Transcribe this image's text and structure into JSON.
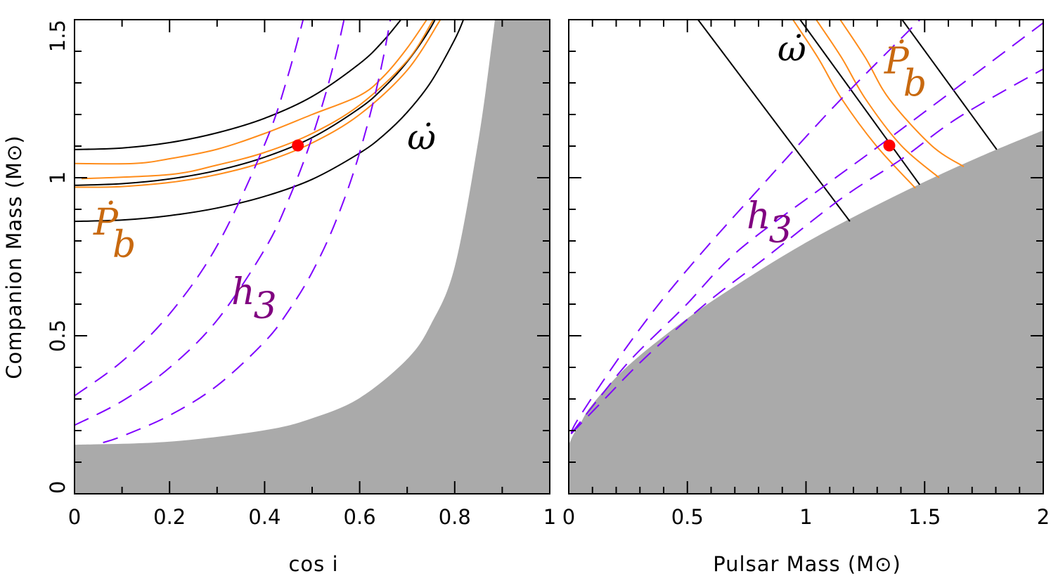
{
  "chart_data": [
    {
      "type": "line",
      "xlabel": "cos i",
      "ylabel": "Companion Mass (M⊙)",
      "xlim": [
        0,
        1
      ],
      "ylim": [
        0,
        1.5
      ],
      "xticks": [
        "0",
        "0.2",
        "0.4",
        "0.6",
        "0.8",
        "1"
      ],
      "xtick_values": [
        0,
        0.2,
        0.4,
        0.6,
        0.8,
        1
      ],
      "yticks": [
        "0",
        "0.5",
        "1",
        "1.5"
      ],
      "ytick_values": [
        0,
        0.5,
        1,
        1.5
      ],
      "minor_x_step": 0.1,
      "minor_y_step": 0.1,
      "grid": false,
      "excluded_region": {
        "color": "#aaaaaa",
        "boundary": [
          [
            0,
            0.155
          ],
          [
            0.2,
            0.165
          ],
          [
            0.4,
            0.201
          ],
          [
            0.5,
            0.239
          ],
          [
            0.6,
            0.303
          ],
          [
            0.7,
            0.426
          ],
          [
            0.75,
            0.536
          ],
          [
            0.8,
            0.718
          ],
          [
            0.85,
            1.12
          ],
          [
            0.88,
            1.446
          ],
          [
            0.885,
            1.51
          ]
        ],
        "closes_to": [
          [
            1,
            1.5
          ],
          [
            1,
            0
          ],
          [
            0,
            0
          ]
        ]
      },
      "series": [
        {
          "group": "omega_dot",
          "color": "#000000",
          "style": "solid",
          "points": [
            [
              0,
              1.089
            ],
            [
              0.1,
              1.094
            ],
            [
              0.2,
              1.111
            ],
            [
              0.3,
              1.142
            ],
            [
              0.4,
              1.188
            ],
            [
              0.5,
              1.257
            ],
            [
              0.6,
              1.361
            ],
            [
              0.65,
              1.433
            ],
            [
              0.7,
              1.525
            ]
          ]
        },
        {
          "group": "omega_dot",
          "color": "#000000",
          "style": "solid",
          "points": [
            [
              0,
              0.976
            ],
            [
              0.1,
              0.981
            ],
            [
              0.2,
              0.996
            ],
            [
              0.3,
              1.023
            ],
            [
              0.4,
              1.065
            ],
            [
              0.5,
              1.127
            ],
            [
              0.6,
              1.22
            ],
            [
              0.65,
              1.284
            ],
            [
              0.7,
              1.367
            ],
            [
              0.75,
              1.476
            ],
            [
              0.8,
              1.627
            ]
          ]
        },
        {
          "group": "omega_dot",
          "color": "#000000",
          "style": "solid",
          "points": [
            [
              0,
              0.862
            ],
            [
              0.1,
              0.866
            ],
            [
              0.2,
              0.88
            ],
            [
              0.3,
              0.904
            ],
            [
              0.4,
              0.941
            ],
            [
              0.5,
              0.995
            ],
            [
              0.6,
              1.078
            ],
            [
              0.65,
              1.134
            ],
            [
              0.7,
              1.207
            ],
            [
              0.75,
              1.303
            ],
            [
              0.8,
              1.437
            ],
            [
              0.82,
              1.506
            ]
          ]
        },
        {
          "group": "pb_dot",
          "color": "#ff8c1a",
          "style": "solid",
          "points": [
            [
              0,
              1.045
            ],
            [
              0.125,
              1.045
            ],
            [
              0.2,
              1.06
            ],
            [
              0.3,
              1.09
            ],
            [
              0.4,
              1.14
            ],
            [
              0.5,
              1.2
            ],
            [
              0.6,
              1.26
            ],
            [
              0.65,
              1.32
            ],
            [
              0.7,
              1.41
            ],
            [
              0.75,
              1.52
            ]
          ]
        },
        {
          "group": "pb_dot",
          "color": "#ff8c1a",
          "style": "solid",
          "points": [
            [
              0.015,
              0.997
            ],
            [
              0.2,
              1.01
            ],
            [
              0.3,
              1.04
            ],
            [
              0.4,
              1.08
            ],
            [
              0.5,
              1.14
            ],
            [
              0.6,
              1.23
            ],
            [
              0.7,
              1.37
            ],
            [
              0.755,
              1.5
            ]
          ]
        },
        {
          "group": "pb_dot",
          "color": "#ff8c1a",
          "style": "solid",
          "points": [
            [
              0,
              0.97
            ],
            [
              0.03,
              0.97
            ],
            [
              0.1,
              0.972
            ],
            [
              0.2,
              0.985
            ],
            [
              0.3,
              1.01
            ],
            [
              0.4,
              1.05
            ],
            [
              0.5,
              1.11
            ],
            [
              0.6,
              1.2
            ],
            [
              0.7,
              1.34
            ],
            [
              0.77,
              1.5
            ]
          ]
        },
        {
          "group": "h3",
          "color": "#7f00ff",
          "style": "dashed",
          "points": [
            [
              0,
              0.31
            ],
            [
              0.1,
              0.419
            ],
            [
              0.2,
              0.569
            ],
            [
              0.3,
              0.785
            ],
            [
              0.4,
              1.105
            ],
            [
              0.45,
              1.327
            ],
            [
              0.5,
              1.611
            ]
          ]
        },
        {
          "group": "h3",
          "color": "#7f00ff",
          "style": "dashed",
          "points": [
            [
              0,
              0.217
            ],
            [
              0.1,
              0.293
            ],
            [
              0.2,
              0.399
            ],
            [
              0.3,
              0.549
            ],
            [
              0.4,
              0.773
            ],
            [
              0.45,
              0.929
            ],
            [
              0.5,
              1.128
            ],
            [
              0.55,
              1.387
            ],
            [
              0.6,
              1.736
            ]
          ]
        },
        {
          "group": "h3",
          "color": "#7f00ff",
          "style": "dashed",
          "points": [
            [
              0.06,
              0.162
            ],
            [
              0.1,
              0.182
            ],
            [
              0.2,
              0.248
            ],
            [
              0.3,
              0.342
            ],
            [
              0.4,
              0.481
            ],
            [
              0.45,
              0.578
            ],
            [
              0.5,
              0.701
            ],
            [
              0.55,
              0.863
            ],
            [
              0.6,
              1.08
            ],
            [
              0.65,
              1.382
            ],
            [
              0.7,
              1.821
            ]
          ]
        }
      ],
      "marker": {
        "x": 0.47,
        "y": 1.102,
        "color": "#ff0000"
      },
      "annotations": [
        {
          "id": "omega",
          "text": "ω̇",
          "x": 0.7,
          "y": 1.09,
          "color": "#000000"
        },
        {
          "id": "pb",
          "text": "Ṗ",
          "sub": "b",
          "x": 0.04,
          "y": 0.82,
          "color": "#c8690f"
        },
        {
          "id": "h3",
          "text": "h",
          "sub": "3",
          "x": 0.33,
          "y": 0.6,
          "color": "#800080"
        }
      ]
    },
    {
      "type": "line",
      "xlabel": "Pulsar Mass (M⊙)",
      "ylabel": "",
      "xlim": [
        0,
        2
      ],
      "ylim": [
        0,
        1.5
      ],
      "xticks": [
        "0",
        "0.5",
        "1",
        "1.5",
        "2"
      ],
      "xtick_values": [
        0,
        0.5,
        1,
        1.5,
        2
      ],
      "yticks": [],
      "ytick_values": [],
      "minor_x_step": 0.1,
      "minor_y_step": 0.1,
      "grid": false,
      "excluded_region": {
        "color": "#aaaaaa",
        "boundary": [
          [
            0,
            0.155
          ],
          [
            0.02,
            0.188
          ],
          [
            0.05,
            0.224
          ],
          [
            0.1,
            0.283
          ],
          [
            0.25,
            0.405
          ],
          [
            0.5,
            0.555
          ],
          [
            0.75,
            0.681
          ],
          [
            1.0,
            0.795
          ],
          [
            1.25,
            0.895
          ],
          [
            1.5,
            0.987
          ],
          [
            1.75,
            1.072
          ],
          [
            2.0,
            1.15
          ]
        ],
        "closes_to": [
          [
            2,
            0
          ],
          [
            0,
            0
          ]
        ]
      },
      "series": [
        {
          "group": "omega_dot",
          "color": "#000000",
          "style": "solid",
          "points": [
            [
              0.545,
              1.5
            ],
            [
              1.185,
              0.862
            ]
          ]
        },
        {
          "group": "omega_dot",
          "color": "#000000",
          "style": "solid",
          "points": [
            [
              0.975,
              1.5
            ],
            [
              1.479,
              0.978
            ]
          ]
        },
        {
          "group": "omega_dot",
          "color": "#000000",
          "style": "solid",
          "points": [
            [
              1.405,
              1.5
            ],
            [
              1.804,
              1.089
            ]
          ]
        },
        {
          "group": "pb_dot",
          "color": "#ff8c1a",
          "style": "solid",
          "points": [
            [
              0.945,
              1.5
            ],
            [
              1.05,
              1.38
            ],
            [
              1.15,
              1.25
            ],
            [
              1.295,
              1.102
            ],
            [
              1.461,
              0.967
            ]
          ]
        },
        {
          "group": "pb_dot",
          "color": "#ff8c1a",
          "style": "solid",
          "points": [
            [
              1.043,
              1.5
            ],
            [
              1.15,
              1.38
            ],
            [
              1.25,
              1.25
            ],
            [
              1.401,
              1.102
            ],
            [
              1.561,
              1.0
            ]
          ]
        },
        {
          "group": "pb_dot",
          "color": "#ff8c1a",
          "style": "solid",
          "points": [
            [
              1.144,
              1.5
            ],
            [
              1.25,
              1.38
            ],
            [
              1.35,
              1.25
            ],
            [
              1.529,
              1.102
            ],
            [
              1.665,
              1.035
            ]
          ]
        },
        {
          "group": "h3",
          "color": "#7f00ff",
          "style": "dashed",
          "points": [
            [
              0.01,
              0.19
            ],
            [
              0.039,
              0.236
            ],
            [
              0.204,
              0.422
            ],
            [
              0.37,
              0.591
            ],
            [
              0.56,
              0.762
            ],
            [
              0.791,
              0.956
            ],
            [
              1.123,
              1.229
            ],
            [
              1.48,
              1.5
            ]
          ]
        },
        {
          "group": "h3",
          "color": "#7f00ff",
          "style": "dashed",
          "points": [
            [
              0.01,
              0.19
            ],
            [
              0.127,
              0.302
            ],
            [
              0.267,
              0.429
            ],
            [
              0.486,
              0.591
            ],
            [
              0.714,
              0.769
            ],
            [
              1.096,
              0.984
            ],
            [
              1.327,
              1.111
            ],
            [
              2.0,
              1.49
            ]
          ]
        },
        {
          "group": "h3",
          "color": "#7f00ff",
          "style": "dashed",
          "points": [
            [
              0.01,
              0.19
            ],
            [
              0.154,
              0.302
            ],
            [
              0.32,
              0.429
            ],
            [
              0.575,
              0.6
            ],
            [
              0.83,
              0.747
            ],
            [
              1.147,
              0.933
            ],
            [
              1.401,
              1.058
            ],
            [
              1.644,
              1.191
            ],
            [
              2.0,
              1.344
            ]
          ]
        }
      ],
      "marker": {
        "x": 1.351,
        "y": 1.102,
        "color": "#ff0000"
      },
      "annotations": [
        {
          "id": "omega",
          "text": "ω̇",
          "x": 0.88,
          "y": 1.37,
          "color": "#000000"
        },
        {
          "id": "pb",
          "text": "Ṗ",
          "sub": "b",
          "x": 1.33,
          "y": 1.33,
          "color": "#c8690f"
        },
        {
          "id": "h3",
          "text": "h",
          "sub": "3",
          "x": 0.75,
          "y": 0.84,
          "color": "#800080"
        }
      ]
    }
  ]
}
